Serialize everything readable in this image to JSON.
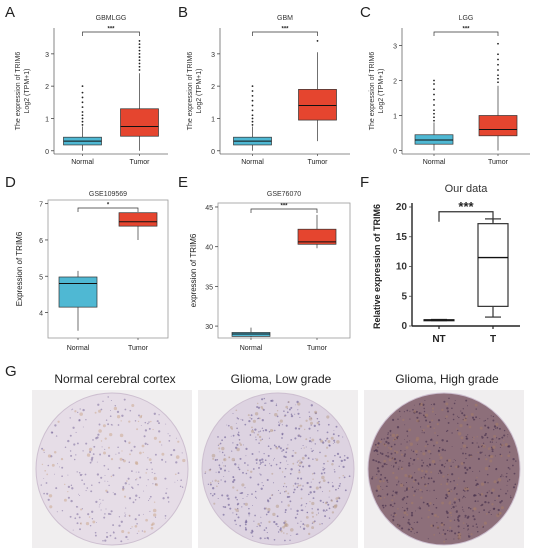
{
  "panels": {
    "A": {
      "letter": "A"
    },
    "B": {
      "letter": "B"
    },
    "C": {
      "letter": "C"
    },
    "D": {
      "letter": "D"
    },
    "E": {
      "letter": "E"
    },
    "F": {
      "letter": "F"
    },
    "G": {
      "letter": "G"
    }
  },
  "colors": {
    "normal": "#4fb8d3",
    "tumor": "#e5452f",
    "nt_t": "#ffffff",
    "outline": "#333333"
  },
  "chart_data": [
    {
      "id": "A",
      "type": "box",
      "title": "GBMLGG",
      "ylabel_line1": "The expression of TRIM6",
      "ylabel_line2": "Log2 (TPM+1)",
      "categories": [
        "Normal",
        "Tumor"
      ],
      "yticks": [
        "0",
        "1",
        "2",
        "3"
      ],
      "ylim": [
        -0.1,
        3.8
      ],
      "significance": "***",
      "boxes": [
        {
          "name": "Normal",
          "min": 0.0,
          "q1": 0.18,
          "median": 0.3,
          "q3": 0.42,
          "max": 0.75,
          "outliers": [
            0.8,
            0.9,
            1.0,
            1.1,
            1.2,
            1.35,
            1.5,
            1.65,
            1.8,
            2.0
          ]
        },
        {
          "name": "Tumor",
          "min": 0.0,
          "q1": 0.45,
          "median": 0.75,
          "q3": 1.3,
          "max": 2.4,
          "outliers": [
            2.5,
            2.6,
            2.7,
            2.8,
            2.9,
            3.0,
            3.1,
            3.2,
            3.3,
            3.4
          ]
        }
      ]
    },
    {
      "id": "B",
      "type": "box",
      "title": "GBM",
      "ylabel_line1": "The expression of TRIM6",
      "ylabel_line2": "Log2 (TPM+1)",
      "categories": [
        "Normal",
        "Tumor"
      ],
      "yticks": [
        "0",
        "1",
        "2",
        "3"
      ],
      "ylim": [
        -0.1,
        3.8
      ],
      "significance": "***",
      "boxes": [
        {
          "name": "Normal",
          "min": 0.0,
          "q1": 0.18,
          "median": 0.3,
          "q3": 0.42,
          "max": 0.75,
          "outliers": [
            0.8,
            0.9,
            1.0,
            1.1,
            1.25,
            1.4,
            1.55,
            1.7,
            1.85,
            2.0
          ]
        },
        {
          "name": "Tumor",
          "min": 0.3,
          "q1": 0.95,
          "median": 1.4,
          "q3": 1.9,
          "max": 3.05,
          "outliers": [
            3.4
          ]
        }
      ]
    },
    {
      "id": "C",
      "type": "box",
      "title": "LGG",
      "ylabel_line1": "The expression of TRIM6",
      "ylabel_line2": "Log2 (TPM+1)",
      "categories": [
        "Normal",
        "Tumor"
      ],
      "yticks": [
        "0",
        "1",
        "2",
        "3"
      ],
      "ylim": [
        -0.1,
        3.5
      ],
      "significance": "***",
      "boxes": [
        {
          "name": "Normal",
          "min": 0.0,
          "q1": 0.18,
          "median": 0.3,
          "q3": 0.45,
          "max": 0.8,
          "outliers": [
            0.85,
            0.95,
            1.05,
            1.15,
            1.3,
            1.45,
            1.6,
            1.75,
            1.9,
            2.0
          ]
        },
        {
          "name": "Tumor",
          "min": 0.0,
          "q1": 0.42,
          "median": 0.6,
          "q3": 1.0,
          "max": 1.85,
          "outliers": [
            1.95,
            2.05,
            2.15,
            2.3,
            2.45,
            2.6,
            2.75,
            3.05
          ]
        }
      ]
    },
    {
      "id": "D",
      "type": "box",
      "title": "GSE109569",
      "ylabel": "Expression of TRIM6",
      "categories": [
        "Normal",
        "Tumor"
      ],
      "yticks": [
        "4",
        "5",
        "6",
        "7"
      ],
      "ylim": [
        3.3,
        7.1
      ],
      "significance": "*",
      "boxes": [
        {
          "name": "Normal",
          "min": 3.5,
          "q1": 4.15,
          "median": 4.8,
          "q3": 4.98,
          "max": 5.15,
          "outliers": []
        },
        {
          "name": "Tumor",
          "min": 6.0,
          "q1": 6.38,
          "median": 6.5,
          "q3": 6.75,
          "max": 6.75,
          "outliers": []
        }
      ]
    },
    {
      "id": "E",
      "type": "box",
      "title": "GSE76070",
      "ylabel": "expression of TRIM6",
      "categories": [
        "Normal",
        "Tumor"
      ],
      "yticks": [
        "30",
        "35",
        "40",
        "45"
      ],
      "ylim": [
        28.5,
        45.5
      ],
      "significance": "***",
      "boxes": [
        {
          "name": "Normal",
          "min": 28.6,
          "q1": 28.7,
          "median": 29.0,
          "q3": 29.2,
          "max": 29.8,
          "outliers": []
        },
        {
          "name": "Tumor",
          "min": 39.8,
          "q1": 40.3,
          "median": 40.6,
          "q3": 42.2,
          "max": 44.0,
          "outliers": []
        }
      ]
    },
    {
      "id": "F",
      "type": "box",
      "title": "Our data",
      "ylabel": "Relative expression of TRIM6",
      "categories": [
        "NT",
        "T"
      ],
      "yticks": [
        "0",
        "5",
        "10",
        "15",
        "20"
      ],
      "ylim": [
        0,
        20
      ],
      "significance": "***",
      "boxes": [
        {
          "name": "NT",
          "min": 0.9,
          "q1": 0.95,
          "median": 1.0,
          "q3": 1.05,
          "max": 1.1,
          "outliers": []
        },
        {
          "name": "T",
          "min": 1.5,
          "q1": 3.3,
          "median": 11.5,
          "q3": 17.2,
          "max": 18.0,
          "outliers": []
        }
      ]
    }
  ],
  "ihc": [
    {
      "title": "Normal cerebral cortex",
      "tone": "light"
    },
    {
      "title": "Glioma, Low grade",
      "tone": "medium"
    },
    {
      "title": "Glioma, High grade",
      "tone": "dark"
    }
  ]
}
